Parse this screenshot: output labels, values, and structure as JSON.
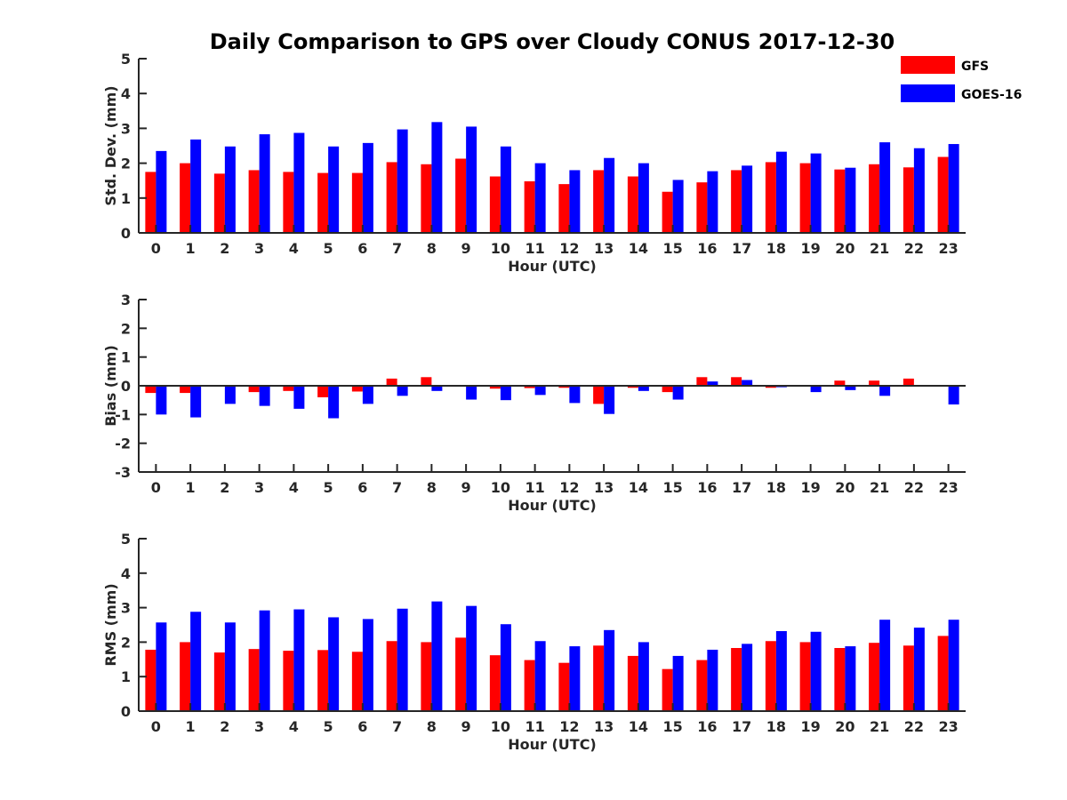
{
  "title": "Daily Comparison to GPS over Cloudy CONUS 2017-12-30",
  "legend": {
    "placement": "top-right",
    "items": [
      {
        "label": "GFS",
        "color": "#ff0000"
      },
      {
        "label": "GOES-16",
        "color": "#0000ff"
      }
    ]
  },
  "chart_data": [
    {
      "type": "bar",
      "xlabel": "Hour (UTC)",
      "ylabel": "Std. Dev. (mm)",
      "ylim": [
        0,
        5
      ],
      "yticks": [
        0,
        1,
        2,
        3,
        4,
        5
      ],
      "categories": [
        "0",
        "1",
        "2",
        "3",
        "4",
        "5",
        "6",
        "7",
        "8",
        "9",
        "10",
        "11",
        "12",
        "13",
        "14",
        "15",
        "16",
        "17",
        "18",
        "19",
        "20",
        "21",
        "22",
        "23"
      ],
      "series": [
        {
          "name": "GFS",
          "color": "#ff0000",
          "values": [
            1.75,
            2.0,
            1.7,
            1.8,
            1.75,
            1.72,
            1.72,
            2.03,
            1.97,
            2.13,
            1.62,
            1.48,
            1.4,
            1.8,
            1.62,
            1.18,
            1.45,
            1.8,
            2.03,
            2.0,
            1.82,
            1.97,
            1.88,
            2.18
          ]
        },
        {
          "name": "GOES-16",
          "color": "#0000ff",
          "values": [
            2.35,
            2.68,
            2.48,
            2.83,
            2.87,
            2.48,
            2.58,
            2.97,
            3.18,
            3.05,
            2.48,
            2.0,
            1.8,
            2.15,
            2.0,
            1.52,
            1.77,
            1.93,
            2.33,
            2.28,
            1.87,
            2.6,
            2.43,
            2.55
          ]
        }
      ]
    },
    {
      "type": "bar",
      "xlabel": "Hour (UTC)",
      "ylabel": "Bias (mm)",
      "ylim": [
        -3,
        3
      ],
      "yticks": [
        -3,
        -2,
        -1,
        0,
        1,
        2,
        3
      ],
      "categories": [
        "0",
        "1",
        "2",
        "3",
        "4",
        "5",
        "6",
        "7",
        "8",
        "9",
        "10",
        "11",
        "12",
        "13",
        "14",
        "15",
        "16",
        "17",
        "18",
        "19",
        "20",
        "21",
        "22",
        "23"
      ],
      "series": [
        {
          "name": "GFS",
          "color": "#ff0000",
          "values": [
            -0.25,
            -0.25,
            0.0,
            -0.22,
            -0.18,
            -0.4,
            -0.2,
            0.25,
            0.3,
            0.02,
            -0.1,
            -0.08,
            -0.07,
            -0.63,
            -0.07,
            -0.22,
            0.3,
            0.3,
            -0.07,
            0.0,
            0.18,
            0.18,
            0.25,
            0.0
          ]
        },
        {
          "name": "GOES-16",
          "color": "#0000ff",
          "values": [
            -1.0,
            -1.1,
            -0.63,
            -0.7,
            -0.8,
            -1.13,
            -0.63,
            -0.35,
            -0.18,
            -0.48,
            -0.5,
            -0.32,
            -0.6,
            -0.98,
            -0.18,
            -0.48,
            0.15,
            0.2,
            -0.05,
            -0.22,
            -0.15,
            -0.35,
            0.0,
            -0.65
          ]
        }
      ]
    },
    {
      "type": "bar",
      "xlabel": "Hour (UTC)",
      "ylabel": "RMS (mm)",
      "ylim": [
        0,
        5
      ],
      "yticks": [
        0,
        1,
        2,
        3,
        4,
        5
      ],
      "categories": [
        "0",
        "1",
        "2",
        "3",
        "4",
        "5",
        "6",
        "7",
        "8",
        "9",
        "10",
        "11",
        "12",
        "13",
        "14",
        "15",
        "16",
        "17",
        "18",
        "19",
        "20",
        "21",
        "22",
        "23"
      ],
      "series": [
        {
          "name": "GFS",
          "color": "#ff0000",
          "values": [
            1.78,
            2.0,
            1.7,
            1.8,
            1.75,
            1.77,
            1.72,
            2.03,
            2.0,
            2.13,
            1.62,
            1.48,
            1.4,
            1.9,
            1.6,
            1.22,
            1.48,
            1.83,
            2.03,
            2.0,
            1.83,
            1.98,
            1.9,
            2.18
          ]
        },
        {
          "name": "GOES-16",
          "color": "#0000ff",
          "values": [
            2.57,
            2.88,
            2.57,
            2.92,
            2.95,
            2.72,
            2.67,
            2.97,
            3.18,
            3.05,
            2.52,
            2.03,
            1.88,
            2.35,
            2.0,
            1.6,
            1.78,
            1.95,
            2.32,
            2.3,
            1.88,
            2.65,
            2.42,
            2.65
          ]
        }
      ]
    }
  ]
}
